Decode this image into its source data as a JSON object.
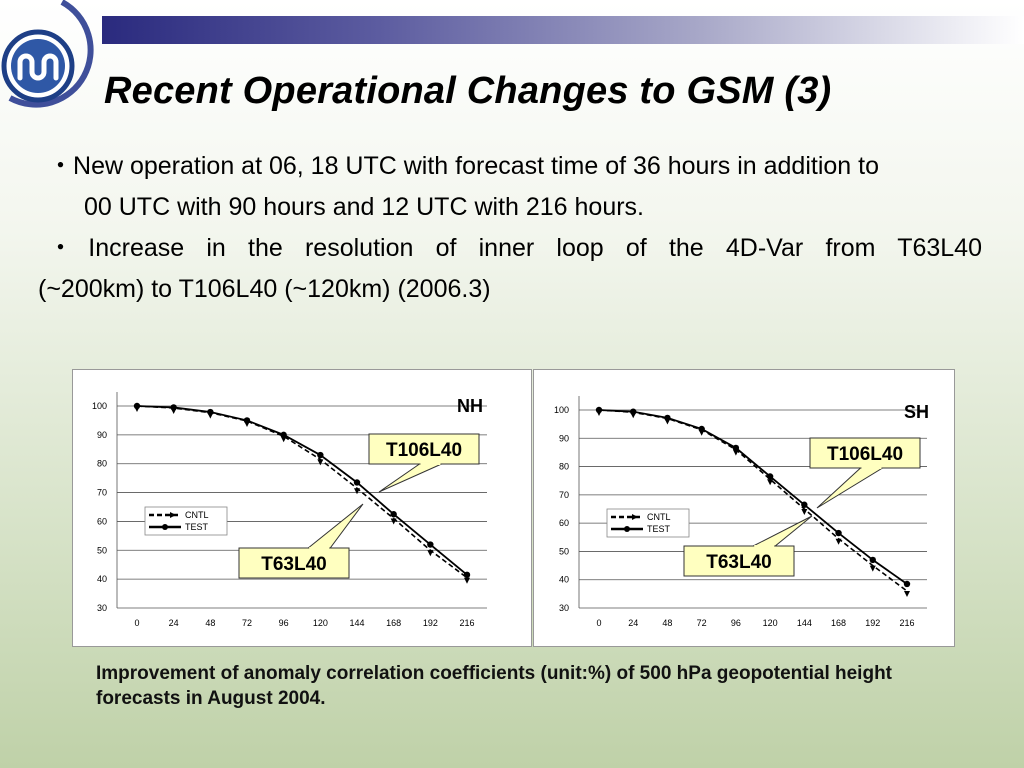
{
  "slide": {
    "title": "Recent Operational Changes to GSM (3)",
    "bullets": [
      {
        "marker": "・",
        "lines": [
          "New operation at 06, 18 UTC with forecast time of 36 hours in addition to",
          "00 UTC with 90 hours and 12 UTC with 216 hours."
        ]
      },
      {
        "marker": "・",
        "lines": [
          "Increase in the resolution of inner loop of the 4D-Var from T63L40",
          "(~200km) to T106L40 (~120km) (2006.3)"
        ]
      }
    ],
    "caption": "Improvement of anomaly correlation coefficients (unit:%) of 500 hPa geopotential height forecasts in August 2004.",
    "colors": {
      "title_bar_dark": "#2a2a7e",
      "callout_fill": "#ffffc0"
    }
  },
  "chart_data": [
    {
      "type": "line",
      "panel_label": "NH",
      "x": [
        0,
        24,
        48,
        72,
        96,
        120,
        144,
        168,
        192,
        216
      ],
      "yticks": [
        100,
        90,
        80,
        70,
        60,
        50,
        40,
        30
      ],
      "ylim": [
        30,
        100
      ],
      "grid": true,
      "legend_placement": "left-middle",
      "series": [
        {
          "name": "CNTL",
          "style": "dashed",
          "values": [
            100,
            99.3,
            97.7,
            94.8,
            89.5,
            81.5,
            71.5,
            61,
            50,
            40.5
          ]
        },
        {
          "name": "TEST",
          "style": "solid",
          "values": [
            100,
            99.5,
            97.9,
            95,
            90,
            83,
            73.5,
            62.5,
            52,
            41.5
          ]
        }
      ],
      "annotations": [
        {
          "text": "T106L40",
          "target": "TEST"
        },
        {
          "text": "T63L40",
          "target": "CNTL"
        }
      ]
    },
    {
      "type": "line",
      "panel_label": "SH",
      "x": [
        0,
        24,
        48,
        72,
        96,
        120,
        144,
        168,
        192,
        216
      ],
      "yticks": [
        100,
        90,
        80,
        70,
        60,
        50,
        40,
        30
      ],
      "ylim": [
        30,
        100
      ],
      "grid": true,
      "legend_placement": "left-middle",
      "series": [
        {
          "name": "CNTL",
          "style": "dashed",
          "values": [
            100,
            99.2,
            97,
            93,
            86,
            75.5,
            65,
            54.5,
            45,
            36
          ]
        },
        {
          "name": "TEST",
          "style": "solid",
          "values": [
            100,
            99.4,
            97.2,
            93.3,
            86.6,
            76.5,
            66.5,
            56.5,
            47,
            38.5
          ]
        }
      ],
      "annotations": [
        {
          "text": "T106L40",
          "target": "TEST"
        },
        {
          "text": "T63L40",
          "target": "CNTL"
        }
      ]
    }
  ]
}
